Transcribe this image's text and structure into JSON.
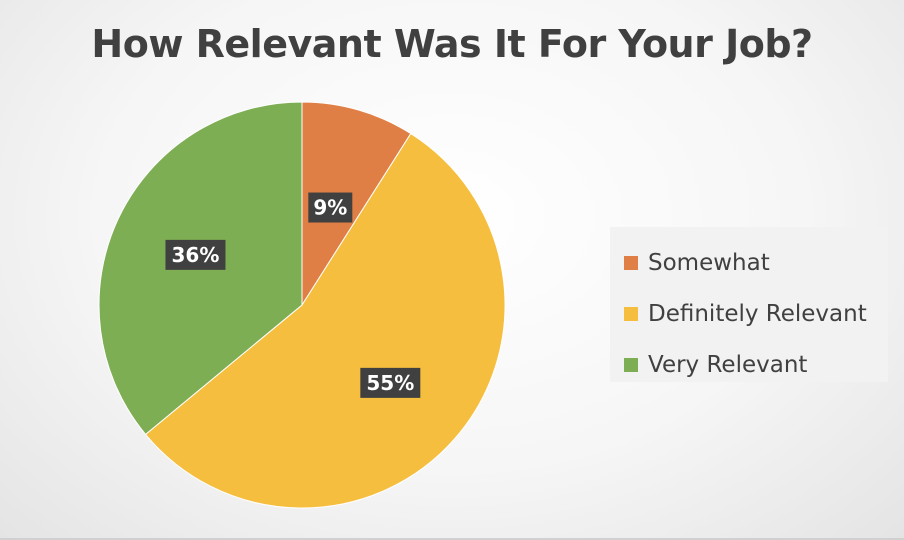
{
  "chart_data": {
    "type": "pie",
    "title": "How Relevant Was It For Your Job?",
    "categories": [
      "Somewhat",
      "Definitely Relevant",
      "Very Relevant"
    ],
    "values": [
      9,
      55,
      36
    ],
    "data_labels": [
      "9%",
      "55%",
      "36%"
    ],
    "colors": [
      "#E07F45",
      "#F6BE3E",
      "#7EAE53"
    ],
    "legend_placement": "right"
  }
}
